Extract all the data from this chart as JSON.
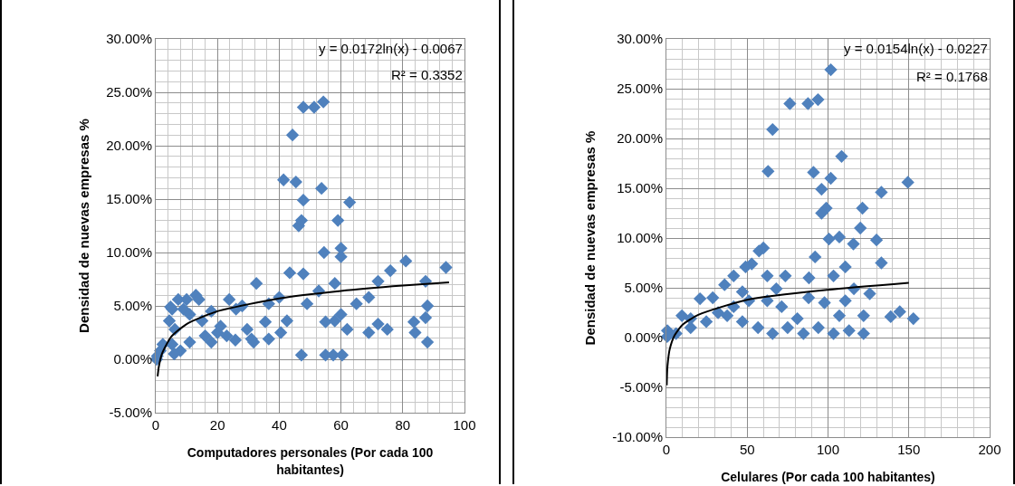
{
  "chart_data": [
    {
      "type": "scatter",
      "ylabel": "Densidad de nuevas empresas %",
      "xlabel": "Computadores personales (Por cada 100 habitantes)",
      "annotations": [
        "y = 0.0172ln(x) - 0.0067",
        "R² = 0.3352"
      ],
      "xlim": [
        0,
        100
      ],
      "xticks": [
        0,
        20,
        40,
        60,
        80,
        100
      ],
      "ylim": [
        -0.05,
        0.3
      ],
      "yticks": [
        {
          "value": -0.05,
          "label": "-5.00%"
        },
        {
          "value": 0,
          "label": "0.00%"
        },
        {
          "value": 0.05,
          "label": "5.00%"
        },
        {
          "value": 0.1,
          "label": "10.00%"
        },
        {
          "value": 0.15,
          "label": "15.00%"
        },
        {
          "value": 0.2,
          "label": "20.00%"
        },
        {
          "value": 0.25,
          "label": "25.00%"
        },
        {
          "value": 0.3,
          "label": "30.00%"
        }
      ],
      "grid": true,
      "series": [
        {
          "marker": "diamond",
          "color": "#4f81bd",
          "x": [
            47.8,
            51.3,
            54.3,
            44.3,
            41.4,
            45.4,
            53.7,
            47.8,
            62.8,
            46.3,
            47.2,
            59,
            54.5,
            60,
            60,
            81,
            94,
            76,
            43.4,
            47.8,
            32.6,
            58,
            72,
            87.4,
            52.8,
            40,
            23.8,
            65,
            49,
            88,
            36.6,
            69,
            13,
            7.3,
            4.8,
            35.5,
            42.5,
            55,
            60,
            58,
            83.6,
            87.4,
            62,
            69,
            72,
            75,
            84,
            88,
            40.5,
            29.6,
            25.8,
            31.7,
            36.6,
            47.2,
            55,
            57.5,
            60.4,
            0.5,
            1.5,
            2.3,
            5.3,
            6.2,
            4.4,
            5.3,
            9,
            10,
            14,
            11,
            15,
            18,
            21,
            16,
            11,
            8,
            23,
            18,
            6,
            0.3,
            26,
            28,
            20,
            31
          ],
          "values": [
            0.236,
            0.236,
            0.241,
            0.21,
            0.168,
            0.166,
            0.16,
            0.149,
            0.147,
            0.125,
            0.13,
            0.13,
            0.1,
            0.104,
            0.096,
            0.092,
            0.086,
            0.083,
            0.081,
            0.08,
            0.071,
            0.071,
            0.073,
            0.073,
            0.064,
            0.058,
            0.056,
            0.052,
            0.052,
            0.05,
            0.052,
            0.058,
            0.06,
            0.056,
            0.049,
            0.035,
            0.036,
            0.035,
            0.042,
            0.036,
            0.035,
            0.039,
            0.028,
            0.025,
            0.033,
            0.028,
            0.025,
            0.016,
            0.025,
            0.028,
            0.018,
            0.016,
            0.019,
            0.004,
            0.004,
            0.004,
            0.004,
            0.003,
            0.008,
            0.014,
            0.014,
            0.028,
            0.036,
            0.047,
            0.047,
            0.056,
            0.056,
            0.042,
            0.036,
            0.045,
            0.031,
            0.022,
            0.016,
            0.008,
            0.022,
            0.016,
            0.005,
            0,
            0.047,
            0.05,
            0.025,
            0.019
          ]
        },
        {
          "type": "line",
          "color": "#000000",
          "x": [
            0.6,
            1,
            2,
            5,
            10,
            20,
            40,
            60,
            80,
            95
          ],
          "values": [
            -0.016,
            -0.007,
            0.005,
            0.021,
            0.033,
            0.045,
            0.057,
            0.064,
            0.069,
            0.072
          ]
        }
      ]
    },
    {
      "type": "scatter",
      "ylabel": "Densidad de nuevas empresas %",
      "xlabel": "Celulares (Por cada 100 habitantes)",
      "annotations": [
        "y = 0.0154ln(x) - 0.0227",
        "R² = 0.1768"
      ],
      "xlim": [
        0,
        200
      ],
      "xticks": [
        0,
        50,
        100,
        150,
        200
      ],
      "ylim": [
        -0.1,
        0.3
      ],
      "yticks": [
        {
          "value": -0.1,
          "label": "-10.00%"
        },
        {
          "value": -0.05,
          "label": "-5.00%"
        },
        {
          "value": 0,
          "label": "0.00%"
        },
        {
          "value": 0.05,
          "label": "5.00%"
        },
        {
          "value": 0.1,
          "label": "10.00%"
        },
        {
          "value": 0.15,
          "label": "15.00%"
        },
        {
          "value": 0.2,
          "label": "20.00%"
        },
        {
          "value": 0.25,
          "label": "25.00%"
        },
        {
          "value": 0.3,
          "label": "30.00%"
        }
      ],
      "grid": true,
      "series": [
        {
          "marker": "diamond",
          "color": "#4f81bd",
          "x": [
            101.7,
            76.4,
            87.6,
            93.8,
            65.7,
            108.4,
            62.9,
            91,
            101.7,
            96,
            149.4,
            133,
            98.9,
            96,
            121.3,
            120,
            100.6,
            107,
            130,
            60,
            57.3,
            115.7,
            92,
            133,
            52.8,
            49,
            110.7,
            62.4,
            41.6,
            36,
            73.6,
            88.2,
            103.4,
            68,
            125.8,
            20.8,
            28.7,
            51,
            9.6,
            138.8,
            144.4,
            152.8,
            122,
            107,
            0.6,
            0.5,
            6,
            15,
            24.7,
            37.6,
            47,
            56.7,
            65.7,
            75,
            84.8,
            94,
            103.4,
            113,
            122,
            81,
            88,
            97.8,
            110.7,
            116,
            62.4,
            71.3,
            41.6,
            32,
            15,
            47
          ],
          "values": [
            0.269,
            0.235,
            0.235,
            0.239,
            0.209,
            0.182,
            0.167,
            0.166,
            0.16,
            0.149,
            0.156,
            0.146,
            0.13,
            0.125,
            0.13,
            0.11,
            0.099,
            0.101,
            0.098,
            0.09,
            0.087,
            0.094,
            0.081,
            0.075,
            0.074,
            0.071,
            0.071,
            0.062,
            0.062,
            0.053,
            0.062,
            0.06,
            0.062,
            0.049,
            0.044,
            0.039,
            0.04,
            0.037,
            0.022,
            0.021,
            0.026,
            0.019,
            0.022,
            0.022,
            0.007,
            0.001,
            0.004,
            0.01,
            0.016,
            0.022,
            0.016,
            0.01,
            0.004,
            0.01,
            0.004,
            0.01,
            0.004,
            0.007,
            0.004,
            0.019,
            0.04,
            0.035,
            0.037,
            0.049,
            0.037,
            0.031,
            0.031,
            0.025,
            0.019,
            0.046
          ]
        },
        {
          "type": "line",
          "color": "#000000",
          "x": [
            0.2,
            0.5,
            1,
            2,
            5,
            10,
            20,
            50,
            100,
            150
          ],
          "values": [
            -0.048,
            -0.033,
            -0.023,
            -0.012,
            0.002,
            0.013,
            0.023,
            0.038,
            0.048,
            0.055
          ]
        }
      ]
    }
  ]
}
